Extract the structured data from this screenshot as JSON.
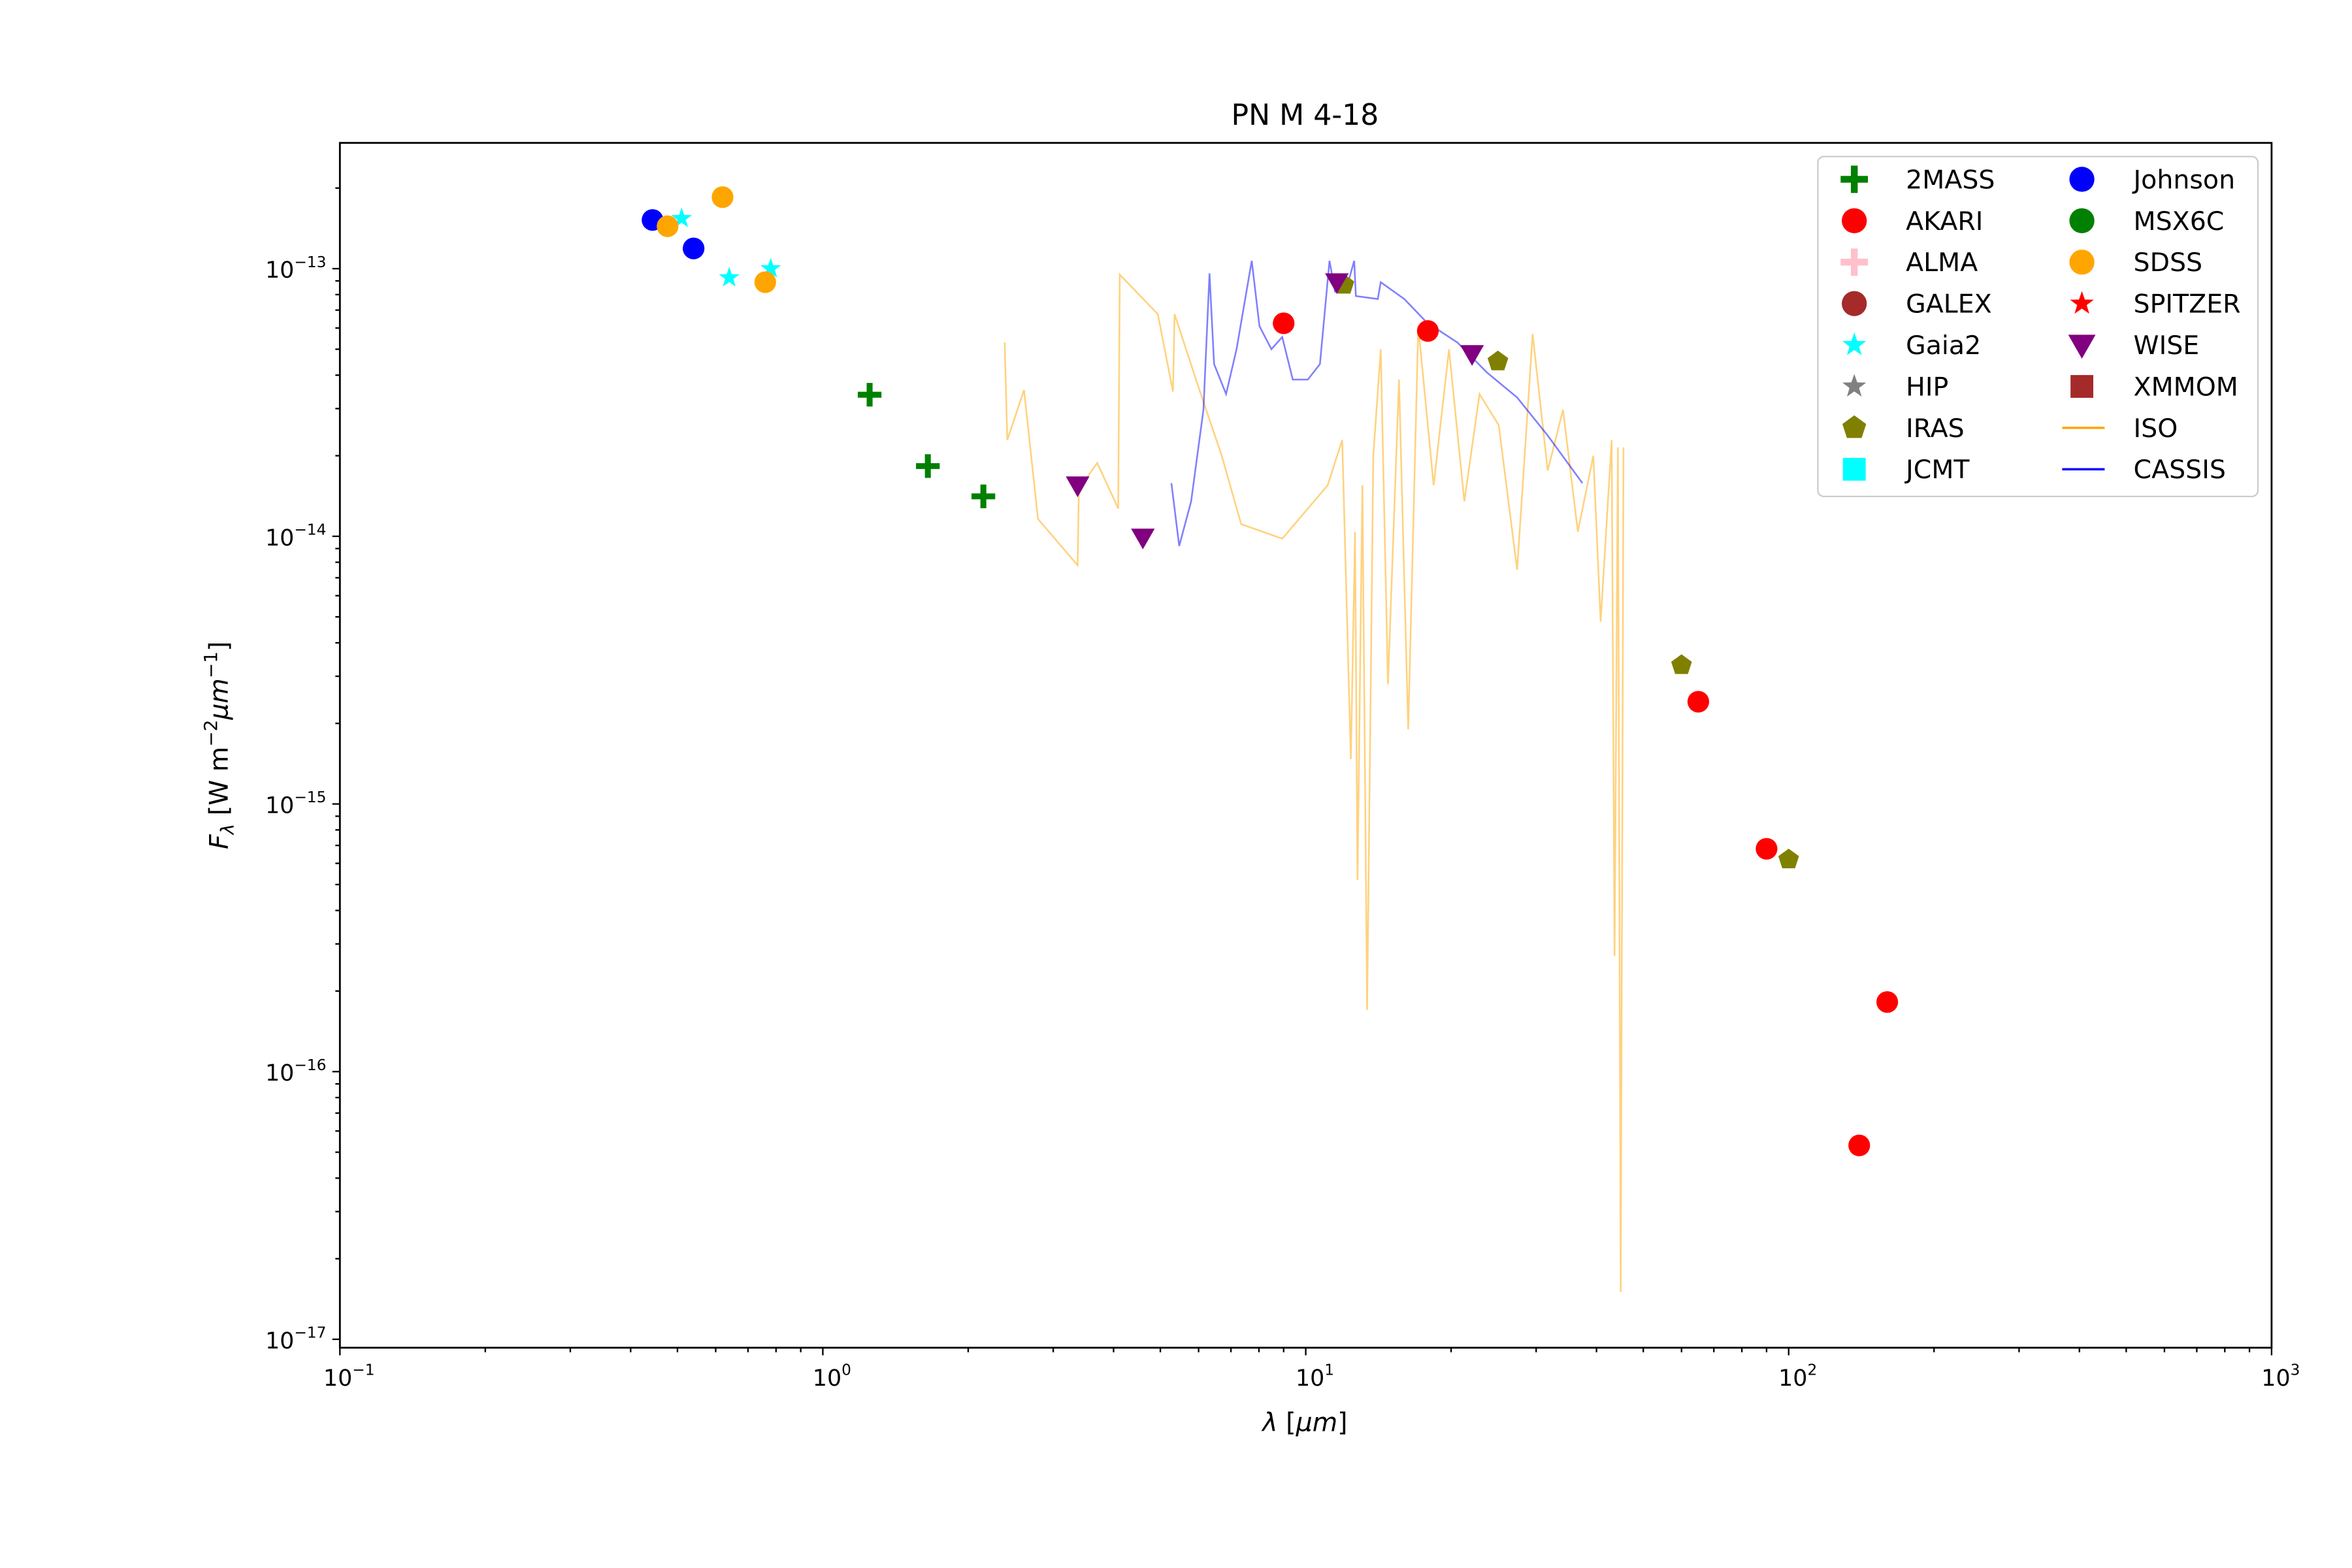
{
  "chart_data": {
    "type": "scatter",
    "title": "PN M 4-18",
    "xlabel_parts": [
      {
        "t": "λ",
        "style": "italic"
      },
      {
        "t": " [",
        "style": "normal"
      },
      {
        "t": "μm",
        "style": "italic"
      },
      {
        "t": "]",
        "style": "normal"
      }
    ],
    "ylabel_parts": [
      {
        "t": "F",
        "style": "italic"
      },
      {
        "t": "λ",
        "style": "sub"
      },
      {
        "t": " [W m",
        "style": "normal"
      },
      {
        "t": "−2",
        "style": "sup"
      },
      {
        "t": "μm",
        "style": "italic"
      },
      {
        "t": "−1",
        "style": "supi"
      },
      {
        "t": "]",
        "style": "normal"
      }
    ],
    "xscale": "log",
    "yscale": "log",
    "xlim": [
      0.1,
      1000
    ],
    "ylim": [
      9.3e-18,
      2.95e-13
    ],
    "grid": false,
    "legend_placement": "upper-right",
    "legend_columns": 2,
    "xticks": [
      {
        "v": 0.1,
        "base": "10",
        "exp": "−1"
      },
      {
        "v": 1,
        "base": "10",
        "exp": "0"
      },
      {
        "v": 10,
        "base": "10",
        "exp": "1"
      },
      {
        "v": 100,
        "base": "10",
        "exp": "2"
      },
      {
        "v": 1000,
        "base": "10",
        "exp": "3"
      }
    ],
    "yticks": [
      {
        "v": 1e-17,
        "base": "10",
        "exp": "−17"
      },
      {
        "v": 1e-16,
        "base": "10",
        "exp": "−16"
      },
      {
        "v": 1e-15,
        "base": "10",
        "exp": "−15"
      },
      {
        "v": 1e-14,
        "base": "10",
        "exp": "−14"
      },
      {
        "v": 1e-13,
        "base": "10",
        "exp": "−13"
      }
    ],
    "series": [
      {
        "name": "2MASS",
        "marker": "plus",
        "color": "#008000",
        "points": [
          [
            1.25,
            3.38e-14
          ],
          [
            1.65,
            1.83e-14
          ],
          [
            2.15,
            1.41e-14
          ]
        ]
      },
      {
        "name": "AKARI",
        "marker": "circle",
        "color": "#ff0000",
        "points": [
          [
            9.0,
            6.25e-14
          ],
          [
            17.9,
            5.85e-14
          ],
          [
            65,
            2.41e-15
          ],
          [
            90,
            6.8e-16
          ],
          [
            140,
            5.3e-17
          ],
          [
            160,
            1.82e-16
          ]
        ]
      },
      {
        "name": "ALMA",
        "marker": "plus",
        "color": "#ffc0cb",
        "points": []
      },
      {
        "name": "GALEX",
        "marker": "circle",
        "color": "#a52a2a",
        "points": []
      },
      {
        "name": "Gaia2",
        "marker": "star",
        "color": "#00ffff",
        "points": [
          [
            0.51,
            1.54e-13
          ],
          [
            0.64,
            9.25e-14
          ],
          [
            0.78,
            1e-13
          ]
        ]
      },
      {
        "name": "HIP",
        "marker": "star",
        "color": "#808080",
        "points": []
      },
      {
        "name": "IRAS",
        "marker": "pentagon",
        "color": "#808000",
        "points": [
          [
            12,
            8.7e-14
          ],
          [
            25,
            4.5e-14
          ],
          [
            60,
            3.3e-15
          ],
          [
            100,
            6.2e-16
          ]
        ]
      },
      {
        "name": "JCMT",
        "marker": "square",
        "color": "#00ffff",
        "points": []
      },
      {
        "name": "Johnson",
        "marker": "circle",
        "color": "#0000ff",
        "points": [
          [
            0.444,
            1.52e-13
          ],
          [
            0.54,
            1.19e-13
          ]
        ]
      },
      {
        "name": "MSX6C",
        "marker": "circle",
        "color": "#008000",
        "points": []
      },
      {
        "name": "SDSS",
        "marker": "circle",
        "color": "#ffa500",
        "points": [
          [
            0.477,
            1.44e-13
          ],
          [
            0.62,
            1.85e-13
          ],
          [
            0.76,
            8.9e-14
          ]
        ]
      },
      {
        "name": "SPITZER",
        "marker": "star",
        "color": "#ff0000",
        "points": []
      },
      {
        "name": "WISE",
        "marker": "triangle-down",
        "color": "#800080",
        "points": [
          [
            3.37,
            1.55e-14
          ],
          [
            4.6,
            9.9e-15
          ],
          [
            11.6,
            8.9e-14
          ],
          [
            22.1,
            4.8e-14
          ]
        ]
      },
      {
        "name": "XMMOM",
        "marker": "square",
        "color": "#a52a2a",
        "points": []
      },
      {
        "name": "ISO",
        "marker": "line",
        "color": "#ffa500",
        "opacity": 0.5,
        "points": [
          [
            2.38,
            5.3e-14
          ],
          [
            2.41,
            2.29e-14
          ],
          [
            2.61,
            3.52e-14
          ],
          [
            2.79,
            1.16e-14
          ],
          [
            3.37,
            7.8e-15
          ],
          [
            3.39,
            1.5e-14
          ],
          [
            3.7,
            1.88e-14
          ],
          [
            4.09,
            1.27e-14
          ],
          [
            4.12,
            9.5e-14
          ],
          [
            4.94,
            6.76e-14
          ],
          [
            5.31,
            3.47e-14
          ],
          [
            5.35,
            6.76e-14
          ],
          [
            6.0,
            3.6e-14
          ],
          [
            6.7,
            2e-14
          ],
          [
            7.35,
            1.11e-14
          ],
          [
            8.94,
            9.8e-15
          ],
          [
            11.1,
            1.55e-14
          ],
          [
            11.9,
            2.29e-14
          ],
          [
            12.4,
            1.47e-15
          ],
          [
            12.65,
            1.04e-14
          ],
          [
            12.8,
            5.2e-16
          ],
          [
            13.1,
            1.55e-14
          ],
          [
            13.4,
            1.7e-16
          ],
          [
            13.8,
            2e-14
          ],
          [
            14.3,
            5e-14
          ],
          [
            14.8,
            2.8e-15
          ],
          [
            15.6,
            3.85e-14
          ],
          [
            16.3,
            1.9e-15
          ],
          [
            17.1,
            6.1e-14
          ],
          [
            18.4,
            1.55e-14
          ],
          [
            19.8,
            5e-14
          ],
          [
            21.3,
            1.35e-14
          ],
          [
            22.9,
            3.4e-14
          ],
          [
            25.1,
            2.6e-14
          ],
          [
            27.4,
            7.5e-15
          ],
          [
            29.5,
            5.7e-14
          ],
          [
            31.7,
            1.76e-14
          ],
          [
            34.1,
            2.97e-14
          ],
          [
            36.6,
            1.04e-14
          ],
          [
            39.4,
            2e-14
          ],
          [
            40.8,
            4.8e-15
          ],
          [
            43.0,
            2.29e-14
          ],
          [
            43.6,
            2.7e-16
          ],
          [
            44.3,
            2.15e-14
          ],
          [
            44.9,
            1.5e-17
          ],
          [
            45.5,
            2.15e-14
          ]
        ]
      },
      {
        "name": "CASSIS",
        "marker": "line",
        "color": "#0000ff",
        "opacity": 0.5,
        "points": [
          [
            5.27,
            1.58e-14
          ],
          [
            5.47,
            9.2e-15
          ],
          [
            5.79,
            1.35e-14
          ],
          [
            6.14,
            2.97e-14
          ],
          [
            6.32,
            9.6e-14
          ],
          [
            6.46,
            4.4e-14
          ],
          [
            6.84,
            3.4e-14
          ],
          [
            7.19,
            5e-14
          ],
          [
            7.73,
            1.07e-13
          ],
          [
            8.02,
            6.1e-14
          ],
          [
            8.49,
            5e-14
          ],
          [
            8.94,
            5.55e-14
          ],
          [
            9.4,
            3.85e-14
          ],
          [
            10.1,
            3.85e-14
          ],
          [
            10.7,
            4.4e-14
          ],
          [
            11.2,
            1.07e-13
          ],
          [
            11.5,
            8.2e-14
          ],
          [
            12.2,
            8.7e-14
          ],
          [
            12.6,
            1.07e-13
          ],
          [
            12.7,
            7.9e-14
          ],
          [
            14.1,
            7.7e-14
          ],
          [
            14.3,
            8.9e-14
          ],
          [
            16.0,
            7.7e-14
          ],
          [
            17.8,
            6.3e-14
          ],
          [
            20.6,
            5.3e-14
          ],
          [
            23.7,
            4.1e-14
          ],
          [
            27.4,
            3.3e-14
          ],
          [
            31.7,
            2.38e-14
          ],
          [
            37.4,
            1.58e-14
          ]
        ]
      }
    ]
  }
}
